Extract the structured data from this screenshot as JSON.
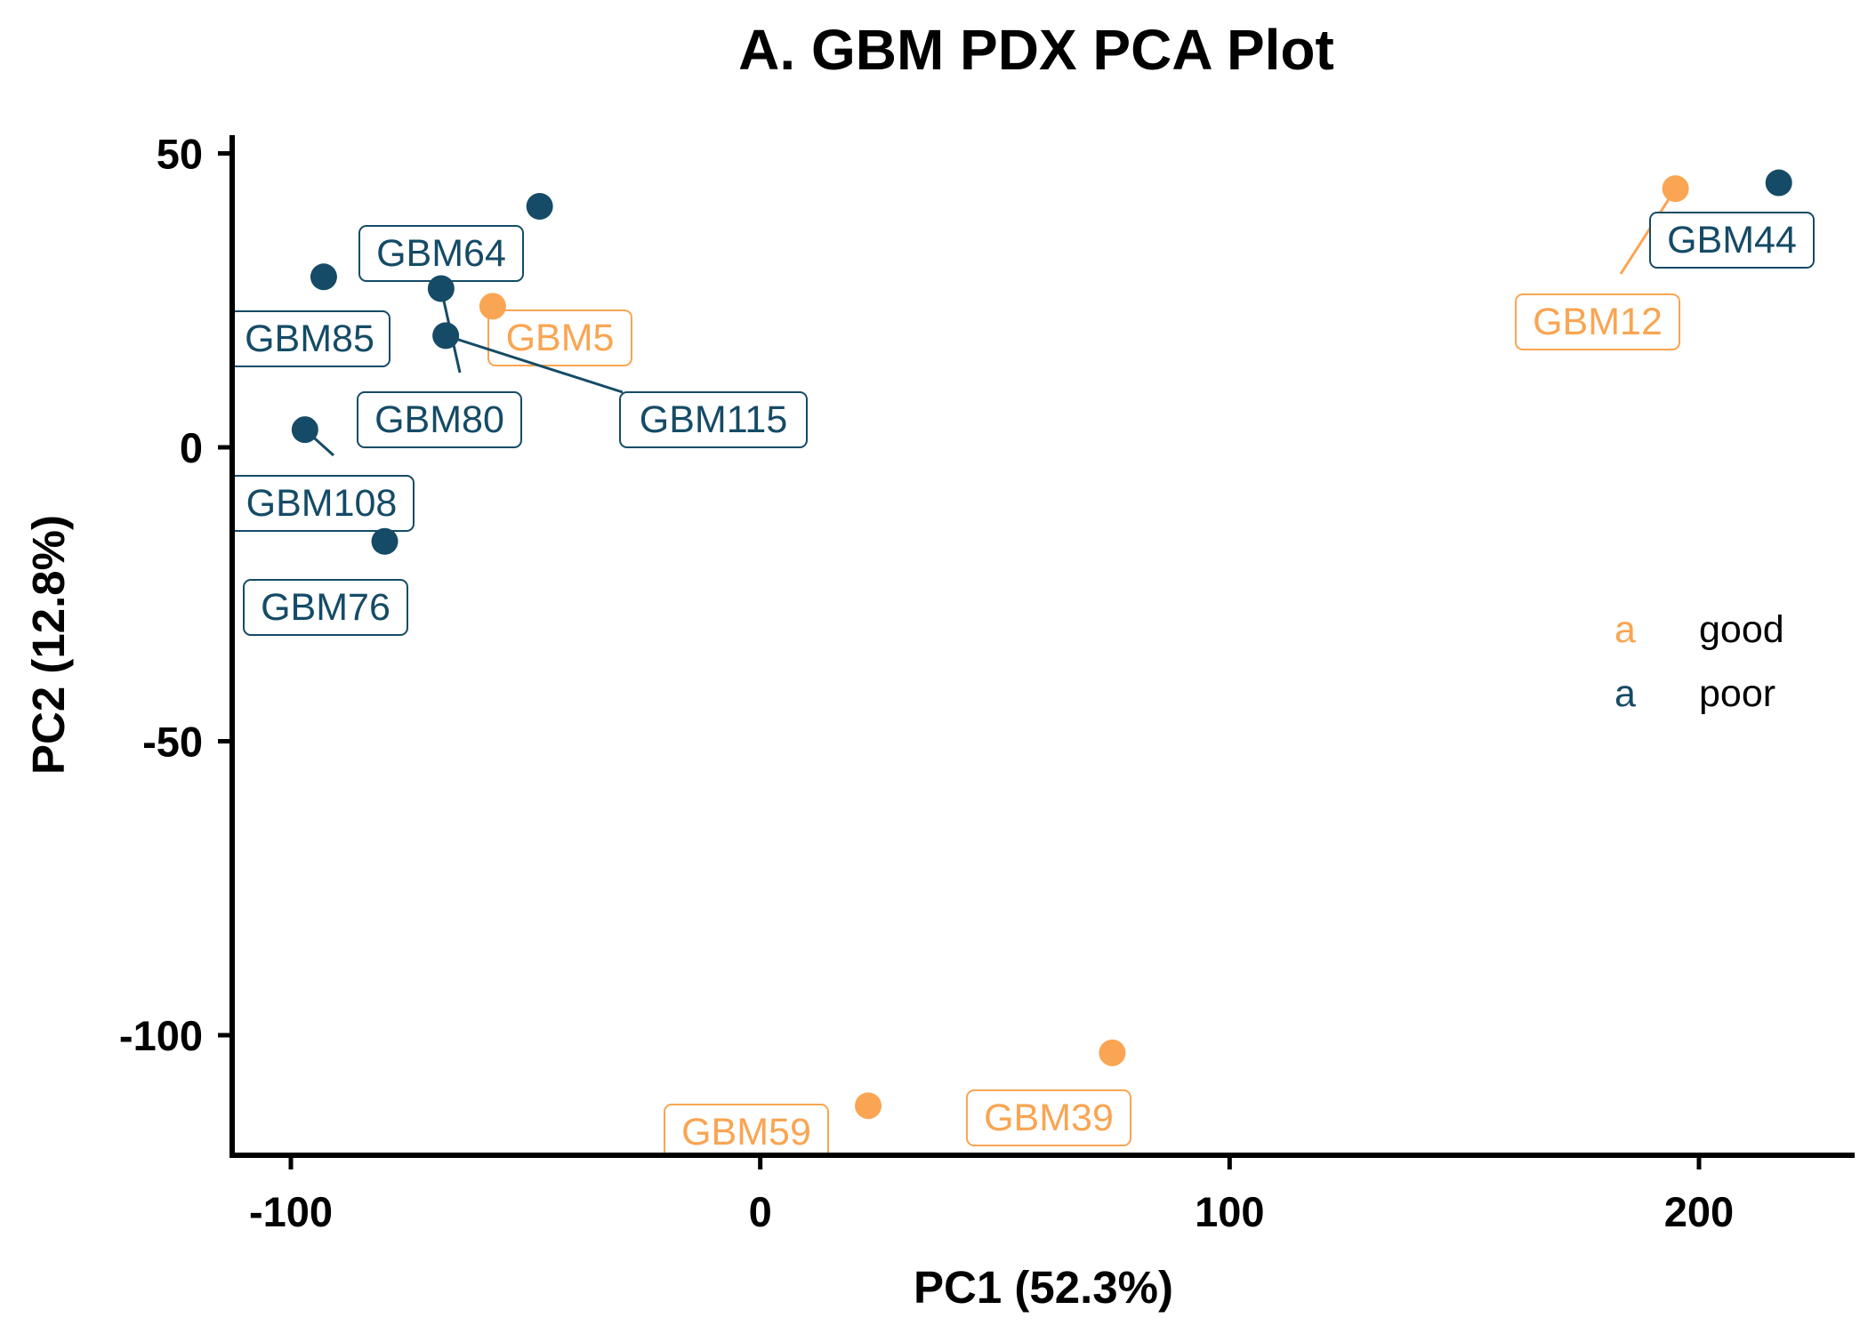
{
  "chart_data": {
    "type": "scatter",
    "title": "A. GBM PDX PCA Plot",
    "xlabel": "PC1 (52.3%)",
    "ylabel": "PC2 (12.8%)",
    "xlim": [
      -113,
      232
    ],
    "ylim": [
      -120,
      53
    ],
    "xticks": [
      -100,
      0,
      100,
      200
    ],
    "yticks": [
      50,
      0,
      -50,
      -100
    ],
    "xtick_labels": [
      "-100",
      "0",
      "100",
      "200"
    ],
    "ytick_labels": [
      "50",
      "0",
      "-50",
      "-100"
    ],
    "grid": false,
    "legend_position": "right",
    "colors": {
      "good": "#F9A553",
      "poor": "#154B66"
    },
    "series": [
      {
        "name": "good",
        "points": [
          {
            "label": "GBM5",
            "x": -57,
            "y": 24
          },
          {
            "label": "GBM59",
            "x": 23,
            "y": -112
          },
          {
            "label": "GBM39",
            "x": 75,
            "y": -103
          },
          {
            "label": "GBM12",
            "x": 195,
            "y": 44
          }
        ]
      },
      {
        "name": "poor",
        "points": [
          {
            "label": "GBM85",
            "x": -93,
            "y": 29
          },
          {
            "label": "GBM108",
            "x": -97,
            "y": 3
          },
          {
            "label": "GBM76",
            "x": -80,
            "y": -16
          },
          {
            "label": "GBM64",
            "x": -68,
            "y": 27
          },
          {
            "label": "GBM115",
            "x": -67,
            "y": 19
          },
          {
            "label": "GBM80",
            "x": -47,
            "y": 41
          },
          {
            "label": "GBM44",
            "x": 217,
            "y": 45
          }
        ]
      }
    ],
    "legend": {
      "key_glyph": "a",
      "entries": [
        "good",
        "poor"
      ]
    }
  }
}
